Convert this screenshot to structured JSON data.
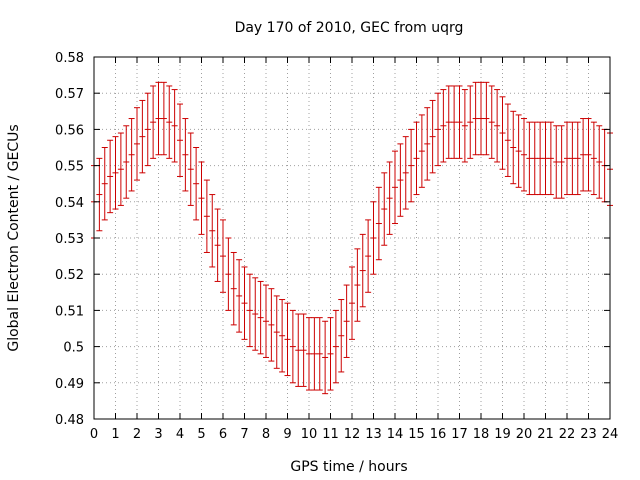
{
  "chart_data": {
    "type": "line",
    "title": "Day 170 of 2010, GEC from uqrg",
    "xlabel": "GPS time / hours",
    "ylabel": "Global Electron Content / GECUs",
    "xlim": [
      0,
      24
    ],
    "ylim": [
      0.48,
      0.58
    ],
    "xticks": [
      "0",
      "1",
      "2",
      "3",
      "4",
      "5",
      "6",
      "7",
      "8",
      "9",
      "10",
      "11",
      "12",
      "13",
      "14",
      "15",
      "16",
      "17",
      "18",
      "19",
      "20",
      "21",
      "22",
      "23",
      "24"
    ],
    "yticks": [
      "0.48",
      "0.49",
      "0.5",
      "0.51",
      "0.52",
      "0.53",
      "0.54",
      "0.55",
      "0.56",
      "0.57",
      "0.58"
    ],
    "grid": true,
    "error_bar_half_width": 0.01,
    "series": [
      {
        "name": "GEC",
        "color": "#cc0000",
        "x": [
          0,
          0.25,
          0.5,
          0.75,
          1,
          1.25,
          1.5,
          1.75,
          2,
          2.25,
          2.5,
          2.75,
          3,
          3.25,
          3.5,
          3.75,
          4,
          4.25,
          4.5,
          4.75,
          5,
          5.25,
          5.5,
          5.75,
          6,
          6.25,
          6.5,
          6.75,
          7,
          7.25,
          7.5,
          7.75,
          8,
          8.25,
          8.5,
          8.75,
          9,
          9.25,
          9.5,
          9.75,
          10,
          10.25,
          10.5,
          10.75,
          11,
          11.25,
          11.5,
          11.75,
          12,
          12.25,
          12.5,
          12.75,
          13,
          13.25,
          13.5,
          13.75,
          14,
          14.25,
          14.5,
          14.75,
          15,
          15.25,
          15.5,
          15.75,
          16,
          16.25,
          16.5,
          16.75,
          17,
          17.25,
          17.5,
          17.75,
          18,
          18.25,
          18.5,
          18.75,
          19,
          19.25,
          19.5,
          19.75,
          20,
          20.25,
          20.5,
          20.75,
          21,
          21.25,
          21.5,
          21.75,
          22,
          22.25,
          22.5,
          22.75,
          23,
          23.25,
          23.5,
          23.75,
          24
        ],
        "values": [
          0.54,
          0.542,
          0.545,
          0.547,
          0.548,
          0.549,
          0.551,
          0.553,
          0.556,
          0.558,
          0.56,
          0.562,
          0.563,
          0.563,
          0.562,
          0.561,
          0.557,
          0.553,
          0.549,
          0.545,
          0.541,
          0.536,
          0.532,
          0.528,
          0.525,
          0.52,
          0.516,
          0.514,
          0.512,
          0.51,
          0.509,
          0.508,
          0.507,
          0.506,
          0.504,
          0.503,
          0.502,
          0.5,
          0.499,
          0.499,
          0.498,
          0.498,
          0.498,
          0.497,
          0.498,
          0.5,
          0.503,
          0.507,
          0.512,
          0.517,
          0.521,
          0.525,
          0.53,
          0.534,
          0.538,
          0.541,
          0.544,
          0.546,
          0.548,
          0.55,
          0.552,
          0.554,
          0.556,
          0.558,
          0.56,
          0.561,
          0.562,
          0.562,
          0.562,
          0.561,
          0.562,
          0.563,
          0.563,
          0.563,
          0.562,
          0.561,
          0.559,
          0.557,
          0.555,
          0.554,
          0.553,
          0.552,
          0.552,
          0.552,
          0.552,
          0.552,
          0.551,
          0.551,
          0.552,
          0.552,
          0.552,
          0.553,
          0.553,
          0.552,
          0.551,
          0.55,
          0.549
        ]
      }
    ]
  }
}
